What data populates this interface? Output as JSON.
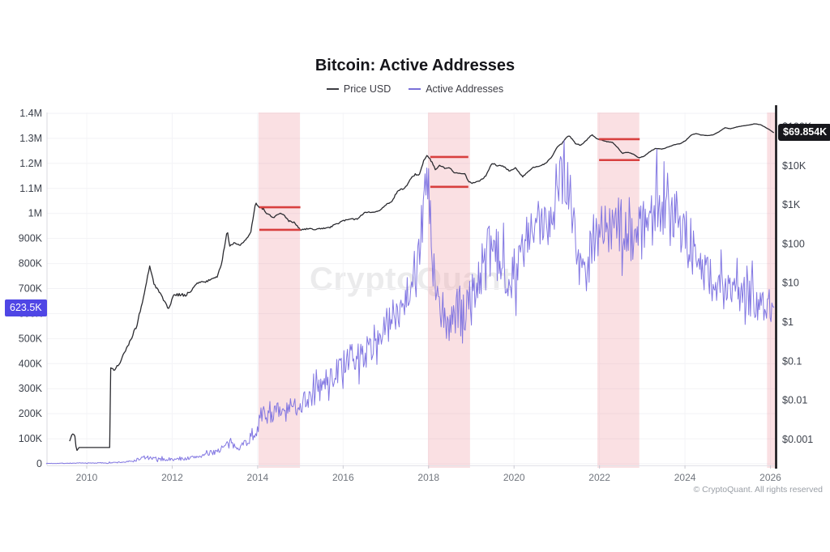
{
  "title": "Bitcoin: Active Addresses",
  "legend": [
    {
      "label": "Price USD",
      "color": "#3c3c42"
    },
    {
      "label": "Active Addresses",
      "color": "#7a70d8"
    }
  ],
  "watermark": "CryptoQuant",
  "footer": "© CryptoQuant. All rights reserved",
  "left_badge": {
    "label": "623.5K",
    "color": "#4f46e5"
  },
  "right_badge": {
    "label": "$69.854K",
    "color": "#17171c"
  },
  "chart_data": {
    "type": "line",
    "title": "Bitcoin: Active Addresses",
    "x_range": [
      2009.0,
      2026.15
    ],
    "x_ticks": [
      2010,
      2012,
      2014,
      2016,
      2018,
      2020,
      2022,
      2024,
      2026
    ],
    "left_axis": {
      "scale": "linear",
      "range": [
        0,
        1400000
      ],
      "ticks": [
        {
          "label": "1.4M",
          "value": 1400000
        },
        {
          "label": "1.3M",
          "value": 1300000
        },
        {
          "label": "1.2M",
          "value": 1200000
        },
        {
          "label": "1.1M",
          "value": 1100000
        },
        {
          "label": "1M",
          "value": 1000000
        },
        {
          "label": "900K",
          "value": 900000
        },
        {
          "label": "800K",
          "value": 800000
        },
        {
          "label": "700K",
          "value": 700000
        },
        {
          "label": "600K",
          "value": 600000
        },
        {
          "label": "500K",
          "value": 500000
        },
        {
          "label": "400K",
          "value": 400000
        },
        {
          "label": "300K",
          "value": 300000
        },
        {
          "label": "200K",
          "value": 200000
        },
        {
          "label": "100K",
          "value": 100000
        },
        {
          "label": "0",
          "value": 0
        }
      ]
    },
    "right_axis": {
      "scale": "log",
      "ticks": [
        {
          "label": "$100K",
          "value": 100000
        },
        {
          "label": "$10K",
          "value": 10000
        },
        {
          "label": "$1K",
          "value": 1000
        },
        {
          "label": "$100",
          "value": 100
        },
        {
          "label": "$10",
          "value": 10
        },
        {
          "label": "$1",
          "value": 1
        },
        {
          "label": "$0.1",
          "value": 0.1
        },
        {
          "label": "$0.01",
          "value": 0.01
        },
        {
          "label": "$0.001",
          "value": 0.001
        }
      ]
    },
    "band_color": "#f2a7b0",
    "highlight_color": "#d8403f",
    "marker_color": "#141418",
    "bands": [
      {
        "x0": 2014.02,
        "x1": 2014.99
      },
      {
        "x0": 2017.985,
        "x1": 2018.97
      },
      {
        "x0": 2021.95,
        "x1": 2022.93
      },
      {
        "x0": 2025.92,
        "x1": 2026.14
      }
    ],
    "ranges": [
      {
        "x0": 2014.04,
        "x1": 2015.0,
        "top": 870,
        "bottom": 230
      },
      {
        "x0": 2018.04,
        "x1": 2018.93,
        "top": 16800,
        "bottom": 2900
      },
      {
        "x0": 2021.99,
        "x1": 2022.94,
        "top": 48000,
        "bottom": 14000
      }
    ],
    "price_usd": {
      "name": "Price USD",
      "color": "#2b2b30",
      "last_value": 69854,
      "points": [
        [
          2009.6,
          0.0009,
          0
        ],
        [
          2009.66,
          0.0014,
          0
        ],
        [
          2009.72,
          0.0013,
          0
        ],
        [
          2009.76,
          0.0005,
          0
        ],
        [
          2009.82,
          0.00062,
          0
        ],
        [
          2010.54,
          0.00062,
          0
        ],
        [
          2010.56,
          0.066,
          0.02
        ],
        [
          2010.66,
          0.062,
          0.045
        ],
        [
          2010.78,
          0.09,
          0.05
        ],
        [
          2010.92,
          0.2,
          0.05
        ],
        [
          2011.05,
          0.35,
          0.06
        ],
        [
          2011.2,
          1.1,
          0.06
        ],
        [
          2011.35,
          5.5,
          0.05
        ],
        [
          2011.47,
          27,
          0.025
        ],
        [
          2011.56,
          11,
          0.05
        ],
        [
          2011.7,
          5.5,
          0.05
        ],
        [
          2011.83,
          3.0,
          0.05
        ],
        [
          2011.93,
          2.1,
          0.04
        ],
        [
          2012.02,
          4.9,
          0.035
        ],
        [
          2012.18,
          5.1,
          0.04
        ],
        [
          2012.33,
          4.9,
          0.035
        ],
        [
          2012.5,
          7.6,
          0.03
        ],
        [
          2012.63,
          11,
          0.03
        ],
        [
          2012.77,
          10.4,
          0.022
        ],
        [
          2012.92,
          12.8,
          0.02
        ],
        [
          2013.05,
          14.5,
          0.02
        ],
        [
          2013.16,
          32,
          0.03
        ],
        [
          2013.25,
          130,
          0.03
        ],
        [
          2013.29,
          238,
          0.012
        ],
        [
          2013.34,
          83,
          0.03
        ],
        [
          2013.45,
          112,
          0.028
        ],
        [
          2013.58,
          95,
          0.025
        ],
        [
          2013.72,
          122,
          0.02
        ],
        [
          2013.84,
          205,
          0.02
        ],
        [
          2013.95,
          1120,
          0.012
        ],
        [
          2014.02,
          905,
          0.018
        ],
        [
          2014.12,
          800,
          0.025
        ],
        [
          2014.25,
          570,
          0.03
        ],
        [
          2014.37,
          450,
          0.022
        ],
        [
          2014.48,
          585,
          0.02
        ],
        [
          2014.6,
          590,
          0.02
        ],
        [
          2014.72,
          390,
          0.022
        ],
        [
          2014.85,
          355,
          0.018
        ],
        [
          2015.0,
          228,
          0.02
        ],
        [
          2015.14,
          242,
          0.028
        ],
        [
          2015.3,
          236,
          0.018
        ],
        [
          2015.5,
          247,
          0.015
        ],
        [
          2015.68,
          262,
          0.015
        ],
        [
          2015.84,
          322,
          0.025
        ],
        [
          2016.0,
          398,
          0.018
        ],
        [
          2016.18,
          420,
          0.018
        ],
        [
          2016.36,
          452,
          0.025
        ],
        [
          2016.52,
          665,
          0.02
        ],
        [
          2016.68,
          640,
          0.013
        ],
        [
          2016.86,
          728,
          0.013
        ],
        [
          2017.0,
          985,
          0.018
        ],
        [
          2017.14,
          1160,
          0.028
        ],
        [
          2017.28,
          2350,
          0.028
        ],
        [
          2017.42,
          2550,
          0.028
        ],
        [
          2017.56,
          4200,
          0.026
        ],
        [
          2017.68,
          6100,
          0.026
        ],
        [
          2017.78,
          5700,
          0.02
        ],
        [
          2017.89,
          13800,
          0.018
        ],
        [
          2017.97,
          18800,
          0.01
        ],
        [
          2018.06,
          13200,
          0.028
        ],
        [
          2018.16,
          8300,
          0.028
        ],
        [
          2018.27,
          10400,
          0.02
        ],
        [
          2018.38,
          8600,
          0.018
        ],
        [
          2018.48,
          9200,
          0.012
        ],
        [
          2018.6,
          6700,
          0.008
        ],
        [
          2018.74,
          6400,
          0.007
        ],
        [
          2018.85,
          6300,
          0.007
        ],
        [
          2018.93,
          4000,
          0.01
        ],
        [
          2019.02,
          3600,
          0.01
        ],
        [
          2019.18,
          4000,
          0.014
        ],
        [
          2019.34,
          5400,
          0.018
        ],
        [
          2019.48,
          11600,
          0.018
        ],
        [
          2019.6,
          10300,
          0.022
        ],
        [
          2019.75,
          9700,
          0.018
        ],
        [
          2019.9,
          7300,
          0.014
        ],
        [
          2020.04,
          8800,
          0.014
        ],
        [
          2020.2,
          5300,
          0.018
        ],
        [
          2020.32,
          6900,
          0.01
        ],
        [
          2020.45,
          9100,
          0.008
        ],
        [
          2020.6,
          9800,
          0.008
        ],
        [
          2020.74,
          11500,
          0.01
        ],
        [
          2020.88,
          16500,
          0.01
        ],
        [
          2021.0,
          29500,
          0.009
        ],
        [
          2021.12,
          37000,
          0.013
        ],
        [
          2021.22,
          53000,
          0.009
        ],
        [
          2021.3,
          58500,
          0.007
        ],
        [
          2021.44,
          36500,
          0.013
        ],
        [
          2021.56,
          33500,
          0.013
        ],
        [
          2021.7,
          45500,
          0.009
        ],
        [
          2021.82,
          62500,
          0.007
        ],
        [
          2021.94,
          49500,
          0.007
        ],
        [
          2022.05,
          45500,
          0.007
        ],
        [
          2022.16,
          41500,
          0.009
        ],
        [
          2022.3,
          39500,
          0.007
        ],
        [
          2022.42,
          29500,
          0.007
        ],
        [
          2022.53,
          20800,
          0.009
        ],
        [
          2022.66,
          22300,
          0.007
        ],
        [
          2022.8,
          19600,
          0.005
        ],
        [
          2022.92,
          15900,
          0.005
        ],
        [
          2023.04,
          17500,
          0.007
        ],
        [
          2023.18,
          23000,
          0.007
        ],
        [
          2023.32,
          27800,
          0.005
        ],
        [
          2023.46,
          26600,
          0.005
        ],
        [
          2023.6,
          29800,
          0.007
        ],
        [
          2023.75,
          34500,
          0.005
        ],
        [
          2023.9,
          37200,
          0.005
        ],
        [
          2024.02,
          44500,
          0.005
        ],
        [
          2024.16,
          62500,
          0.005
        ],
        [
          2024.26,
          66500,
          0.005
        ],
        [
          2024.38,
          61000,
          0.005
        ],
        [
          2024.52,
          59500,
          0.004
        ],
        [
          2024.66,
          61500,
          0.004
        ],
        [
          2024.8,
          74500,
          0.004
        ],
        [
          2024.94,
          94500,
          0.0035
        ],
        [
          2025.06,
          88500,
          0.004
        ],
        [
          2025.2,
          97500,
          0.0035
        ],
        [
          2025.34,
          104500,
          0.0035
        ],
        [
          2025.5,
          110500,
          0.003
        ],
        [
          2025.64,
          118500,
          0.003
        ],
        [
          2025.78,
          111000,
          0.0035
        ],
        [
          2025.88,
          96500,
          0.0035
        ],
        [
          2025.97,
          84500,
          0.003
        ],
        [
          2026.08,
          69854,
          0
        ]
      ]
    },
    "active_addresses": {
      "name": "Active Addresses",
      "color": "#7b70e0",
      "last_value": 623500,
      "points": [
        [
          2009.05,
          1500,
          900
        ],
        [
          2010.0,
          2800,
          1500
        ],
        [
          2010.6,
          4200,
          2200
        ],
        [
          2011.05,
          9000,
          4500
        ],
        [
          2011.35,
          26000,
          9000
        ],
        [
          2011.6,
          18500,
          7000
        ],
        [
          2012.0,
          16500,
          6000
        ],
        [
          2012.4,
          22500,
          7500
        ],
        [
          2012.8,
          36000,
          9500
        ],
        [
          2013.1,
          56000,
          13000
        ],
        [
          2013.3,
          76000,
          19000
        ],
        [
          2013.6,
          70000,
          15000
        ],
        [
          2013.9,
          112000,
          26000
        ],
        [
          2014.05,
          178000,
          42000
        ],
        [
          2014.3,
          212000,
          48000
        ],
        [
          2014.6,
          198000,
          42000
        ],
        [
          2014.9,
          232000,
          46000
        ],
        [
          2015.1,
          256000,
          50000
        ],
        [
          2015.4,
          292000,
          55000
        ],
        [
          2015.7,
          342000,
          56000
        ],
        [
          2016.0,
          392000,
          56000
        ],
        [
          2016.3,
          422000,
          60000
        ],
        [
          2016.6,
          452000,
          62000
        ],
        [
          2016.9,
          522000,
          66000
        ],
        [
          2017.15,
          582000,
          76000
        ],
        [
          2017.4,
          652000,
          92000
        ],
        [
          2017.65,
          752000,
          102000
        ],
        [
          2017.85,
          952000,
          112000
        ],
        [
          2017.98,
          1155000,
          125000
        ],
        [
          2018.1,
          755000,
          132000
        ],
        [
          2018.25,
          605000,
          112000
        ],
        [
          2018.45,
          562000,
          102000
        ],
        [
          2018.6,
          592000,
          112000
        ],
        [
          2018.8,
          602000,
          112000
        ],
        [
          2019.0,
          652000,
          112000
        ],
        [
          2019.2,
          752000,
          112000
        ],
        [
          2019.45,
          852000,
          122000
        ],
        [
          2019.7,
          802000,
          112000
        ],
        [
          2019.9,
          752000,
          102000
        ],
        [
          2020.1,
          802000,
          112000
        ],
        [
          2020.35,
          902000,
          112000
        ],
        [
          2020.6,
          952000,
          112000
        ],
        [
          2020.85,
          1002000,
          122000
        ],
        [
          2021.0,
          1102000,
          142000
        ],
        [
          2021.15,
          1205000,
          160000
        ],
        [
          2021.3,
          1105000,
          142000
        ],
        [
          2021.5,
          805000,
          122000
        ],
        [
          2021.65,
          755000,
          112000
        ],
        [
          2021.85,
          902000,
          112000
        ],
        [
          2022.0,
          952000,
          112000
        ],
        [
          2022.2,
          932000,
          112000
        ],
        [
          2022.45,
          952000,
          112000
        ],
        [
          2022.7,
          922000,
          112000
        ],
        [
          2022.95,
          932000,
          122000
        ],
        [
          2023.15,
          982000,
          132000
        ],
        [
          2023.35,
          1022000,
          142000
        ],
        [
          2023.6,
          1052000,
          132000
        ],
        [
          2023.85,
          1002000,
          132000
        ],
        [
          2024.05,
          902000,
          122000
        ],
        [
          2024.3,
          802000,
          112000
        ],
        [
          2024.55,
          752000,
          102000
        ],
        [
          2024.8,
          702000,
          92000
        ],
        [
          2025.05,
          682000,
          82000
        ],
        [
          2025.3,
          702000,
          86000
        ],
        [
          2025.55,
          662000,
          82000
        ],
        [
          2025.8,
          652000,
          92000
        ],
        [
          2026.0,
          642000,
          62000
        ],
        [
          2026.08,
          623500,
          0
        ]
      ]
    }
  }
}
